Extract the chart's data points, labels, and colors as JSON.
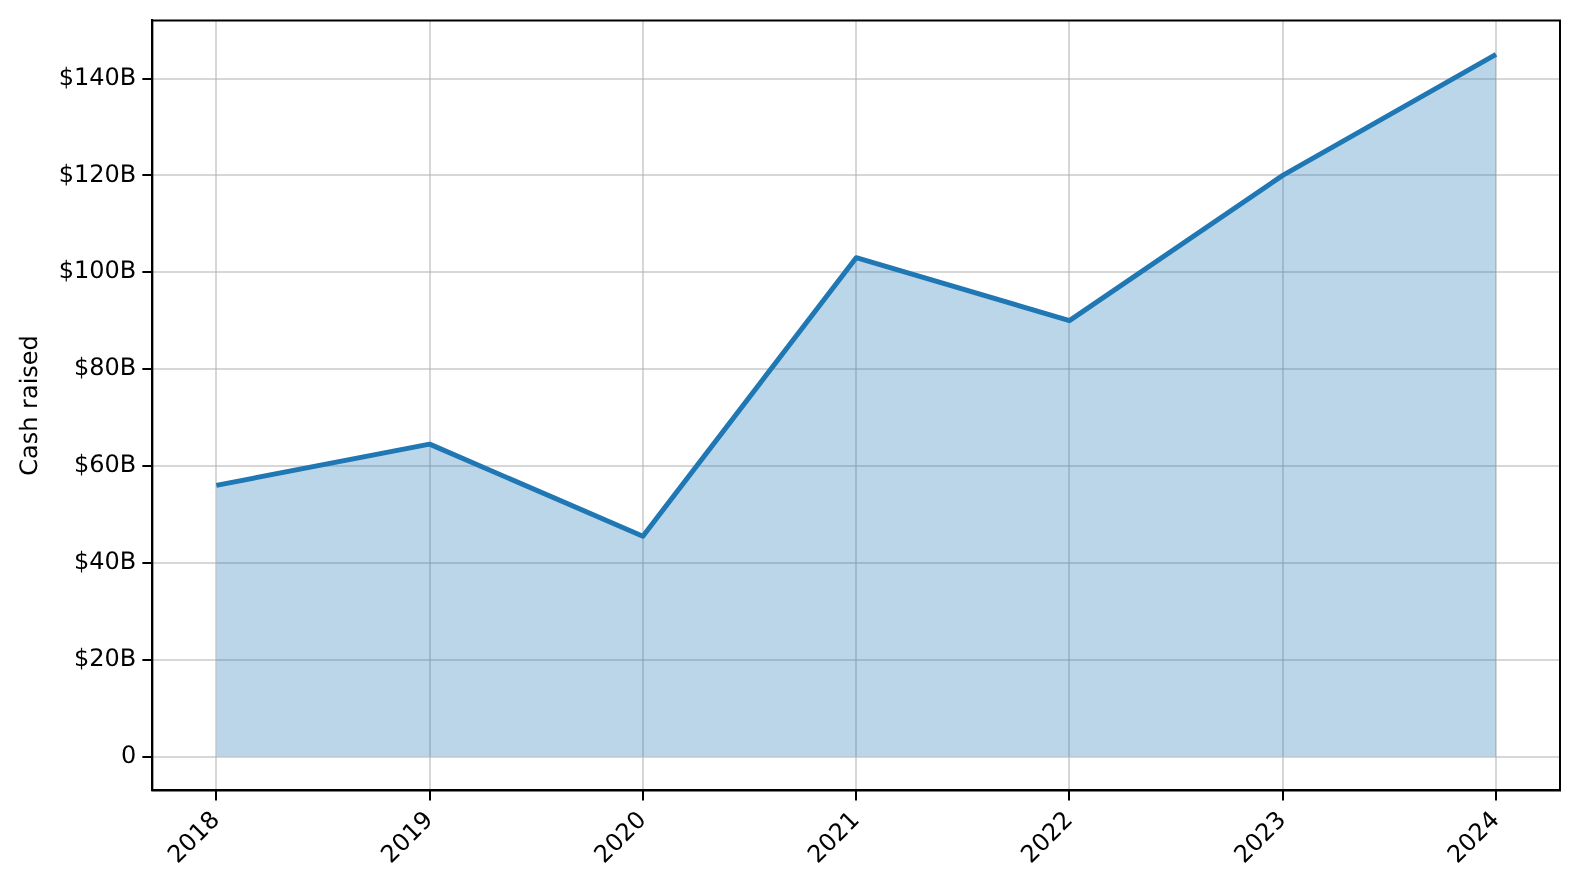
{
  "chart_data": {
    "type": "area",
    "ylabel": "Cash raised",
    "x": [
      2018,
      2019,
      2020,
      2021,
      2022,
      2023,
      2024
    ],
    "series": [
      {
        "color": "#1f77b4",
        "values": [
          56,
          64.5,
          45.5,
          103,
          90,
          120,
          145
        ]
      }
    ],
    "xlim": [
      2017.7,
      2024.3
    ],
    "xticks": [
      2018,
      2019,
      2020,
      2021,
      2022,
      2023,
      2024
    ],
    "ylim": [
      -7,
      152
    ],
    "yticks": [
      0,
      {
        "value": 20,
        "label": "$20B"
      },
      {
        "value": 40,
        "label": "$40B"
      },
      {
        "value": 60,
        "label": "$60B"
      },
      {
        "value": 80,
        "label": "$80B"
      },
      {
        "value": 100,
        "label": "$100B"
      },
      {
        "value": 120,
        "label": "$120B"
      },
      {
        "value": 140,
        "label": "$140B"
      }
    ],
    "grid": true,
    "line_style": "solid",
    "marker": "none",
    "legend": false
  }
}
